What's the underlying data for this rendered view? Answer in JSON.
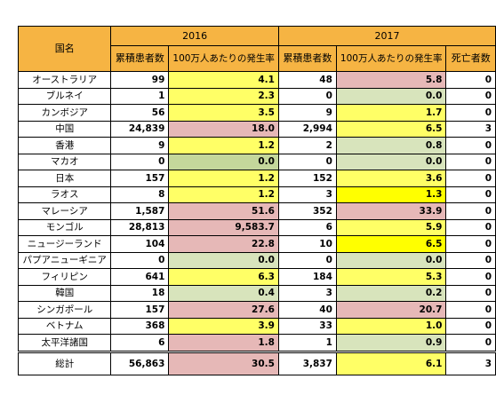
{
  "table": {
    "header": {
      "country": "国名",
      "year1": "2016",
      "year2": "2017",
      "cumulative": "累積患者数",
      "rate": "100万人あたりの発生率",
      "deaths": "死亡者数"
    },
    "rows": [
      {
        "name": "オーストラリア",
        "c2016": "99",
        "r2016": "4.1",
        "c2017": "48",
        "r2017": "5.8",
        "deaths": "0",
        "bg2016": "#ffff66",
        "bg2017": "#e6b8b7"
      },
      {
        "name": "ブルネイ",
        "c2016": "1",
        "r2016": "2.3",
        "c2017": "0",
        "r2017": "0.0",
        "deaths": "0",
        "bg2016": "#ffff66",
        "bg2017": "#d8e4bc"
      },
      {
        "name": "カンボジア",
        "c2016": "56",
        "r2016": "3.5",
        "c2017": "9",
        "r2017": "1.7",
        "deaths": "0",
        "bg2016": "#ffff66",
        "bg2017": "#ffff66"
      },
      {
        "name": "中国",
        "c2016": "24,839",
        "r2016": "18.0",
        "c2017": "2,994",
        "r2017": "6.5",
        "deaths": "3",
        "bg2016": "#e6b8b7",
        "bg2017": "#ffff66"
      },
      {
        "name": "香港",
        "c2016": "9",
        "r2016": "1.2",
        "c2017": "2",
        "r2017": "0.8",
        "deaths": "0",
        "bg2016": "#ffff66",
        "bg2017": "#d8e4bc"
      },
      {
        "name": "マカオ",
        "c2016": "0",
        "r2016": "0.0",
        "c2017": "0",
        "r2017": "0.0",
        "deaths": "0",
        "bg2016": "#c4d79b",
        "bg2017": "#d8e4bc"
      },
      {
        "name": "日本",
        "c2016": "157",
        "r2016": "1.2",
        "c2017": "152",
        "r2017": "3.6",
        "deaths": "0",
        "bg2016": "#ffff66",
        "bg2017": "#ffff66"
      },
      {
        "name": "ラオス",
        "c2016": "8",
        "r2016": "1.2",
        "c2017": "3",
        "r2017": "1.3",
        "deaths": "0",
        "bg2016": "#ffff66",
        "bg2017": "#ffff00"
      },
      {
        "name": "マレーシア",
        "c2016": "1,587",
        "r2016": "51.6",
        "c2017": "352",
        "r2017": "33.9",
        "deaths": "0",
        "bg2016": "#e6b8b7",
        "bg2017": "#e6b8b7"
      },
      {
        "name": "モンゴル",
        "c2016": "28,813",
        "r2016": "9,583.7",
        "c2017": "6",
        "r2017": "5.9",
        "deaths": "0",
        "bg2016": "#e6b8b7",
        "bg2017": "#ffff66"
      },
      {
        "name": "ニュージーランド",
        "c2016": "104",
        "r2016": "22.8",
        "c2017": "10",
        "r2017": "6.5",
        "deaths": "0",
        "bg2016": "#e6b8b7",
        "bg2017": "#ffff00"
      },
      {
        "name": "パプアニューギニア",
        "c2016": "0",
        "r2016": "0.0",
        "c2017": "0",
        "r2017": "0.0",
        "deaths": "0",
        "bg2016": "#d8e4bc",
        "bg2017": "#d8e4bc"
      },
      {
        "name": "フィリピン",
        "c2016": "641",
        "r2016": "6.3",
        "c2017": "184",
        "r2017": "5.3",
        "deaths": "0",
        "bg2016": "#ffff66",
        "bg2017": "#ffff66"
      },
      {
        "name": "韓国",
        "c2016": "18",
        "r2016": "0.4",
        "c2017": "3",
        "r2017": "0.2",
        "deaths": "0",
        "bg2016": "#d8e4bc",
        "bg2017": "#d8e4bc"
      },
      {
        "name": "シンガポール",
        "c2016": "157",
        "r2016": "27.6",
        "c2017": "40",
        "r2017": "20.7",
        "deaths": "0",
        "bg2016": "#e6b8b7",
        "bg2017": "#e6b8b7"
      },
      {
        "name": "ベトナム",
        "c2016": "368",
        "r2016": "3.9",
        "c2017": "33",
        "r2017": "1.0",
        "deaths": "0",
        "bg2016": "#ffff66",
        "bg2017": "#ffff66"
      },
      {
        "name": "太平洋諸国",
        "c2016": "6",
        "r2016": "1.8",
        "c2017": "1",
        "r2017": "0.9",
        "deaths": "0",
        "bg2016": "#e6b8b7",
        "bg2017": "#d8e4bc"
      }
    ],
    "total": {
      "name": "総計",
      "c2016": "56,863",
      "r2016": "30.5",
      "c2017": "3,837",
      "r2017": "6.1",
      "deaths": "3",
      "bg2016": "#e6b8b7",
      "bg2017": "#ffff66"
    }
  }
}
